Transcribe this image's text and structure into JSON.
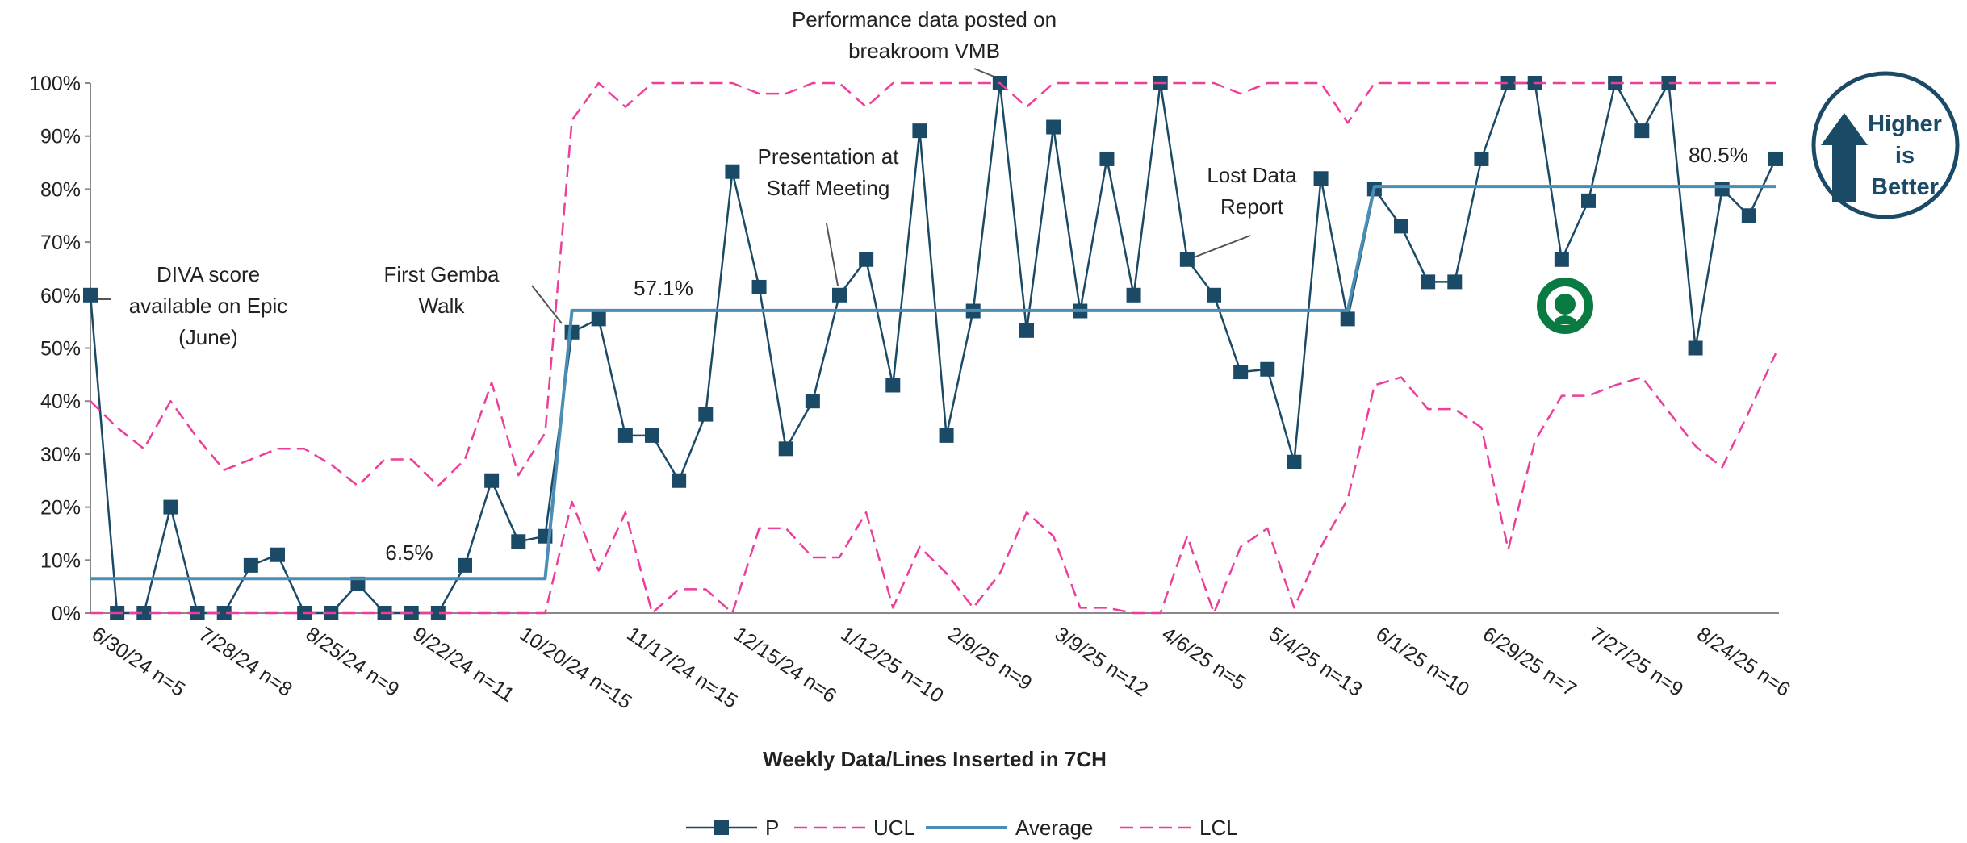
{
  "chart_data": {
    "type": "line",
    "x_label": "Weekly Data/Lines Inserted in 7CH",
    "categories": [
      "6/30/24 n=5",
      null,
      null,
      null,
      "7/28/24 n=8",
      null,
      null,
      null,
      "8/25/24 n=9",
      null,
      null,
      null,
      "9/22/24 n=11",
      null,
      null,
      null,
      "10/20/24 n=15",
      null,
      null,
      null,
      "11/17/24 n=15",
      null,
      null,
      null,
      "12/15/24 n=6",
      null,
      null,
      null,
      "1/12/25 n=10",
      null,
      null,
      null,
      "2/9/25 n=9",
      null,
      null,
      null,
      "3/9/25 n=12",
      null,
      null,
      null,
      "4/6/25 n=5",
      null,
      null,
      null,
      "5/4/25 n=13",
      null,
      null,
      null,
      "6/1/25 n=10",
      null,
      null,
      null,
      "6/29/25 n=7",
      null,
      null,
      null,
      "7/27/25 n=9",
      null,
      null,
      null,
      "8/24/25 n=6",
      null,
      null,
      null
    ],
    "series": [
      {
        "name": "P",
        "color": "#1b4a66",
        "style": "marker-line",
        "values": [
          60,
          0,
          0,
          20,
          0,
          0,
          9,
          11,
          0,
          0,
          5.5,
          0,
          0,
          0,
          9,
          25,
          13.5,
          14.5,
          53,
          55.5,
          33.5,
          33.5,
          25,
          37.5,
          83.3,
          61.5,
          31,
          40,
          60,
          66.7,
          43,
          91,
          33.5,
          57,
          100,
          53.3,
          91.7,
          57,
          85.7,
          60,
          100,
          66.7,
          60,
          45.5,
          46,
          28.5,
          82,
          55.5,
          80,
          73,
          62.5,
          62.5,
          85.7,
          100,
          100,
          66.7,
          77.8,
          100,
          91,
          100,
          50,
          80,
          75,
          85.7
        ]
      },
      {
        "name": "UCL",
        "color": "#ec3f9a",
        "style": "dashed",
        "values": [
          40,
          35,
          31,
          40,
          33,
          27,
          29,
          31,
          31,
          28,
          24,
          29,
          29,
          24,
          29,
          43.5,
          26,
          34,
          93,
          100,
          95.5,
          100,
          100,
          100,
          100,
          98,
          98,
          100,
          100,
          95.5,
          100,
          100,
          100,
          100,
          100,
          95.5,
          100,
          100,
          100,
          100,
          100,
          100,
          100,
          98,
          100,
          100,
          100,
          92.5,
          100,
          100,
          100,
          100,
          100,
          100,
          100,
          100,
          100,
          100,
          100,
          100,
          100,
          100,
          100,
          100
        ]
      },
      {
        "name": "Average",
        "color": "#4a8db5",
        "style": "solid",
        "values": [
          6.5,
          6.5,
          6.5,
          6.5,
          6.5,
          6.5,
          6.5,
          6.5,
          6.5,
          6.5,
          6.5,
          6.5,
          6.5,
          6.5,
          6.5,
          6.5,
          6.5,
          6.5,
          57.1,
          57.1,
          57.1,
          57.1,
          57.1,
          57.1,
          57.1,
          57.1,
          57.1,
          57.1,
          57.1,
          57.1,
          57.1,
          57.1,
          57.1,
          57.1,
          57.1,
          57.1,
          57.1,
          57.1,
          57.1,
          57.1,
          57.1,
          57.1,
          57.1,
          57.1,
          57.1,
          57.1,
          57.1,
          57.1,
          80.5,
          80.5,
          80.5,
          80.5,
          80.5,
          80.5,
          80.5,
          80.5,
          80.5,
          80.5,
          80.5,
          80.5,
          80.5,
          80.5,
          80.5,
          80.5
        ]
      },
      {
        "name": "LCL",
        "color": "#ec3f9a",
        "style": "dashed",
        "values": [
          0,
          0,
          0,
          0,
          0,
          0,
          0,
          0,
          0,
          0,
          0,
          0,
          0,
          0,
          0,
          0,
          0,
          0,
          21,
          8,
          19,
          0,
          4.5,
          4.5,
          0,
          16,
          16,
          10.5,
          10.5,
          19,
          1,
          12.5,
          7.5,
          1,
          7.5,
          19,
          14.5,
          1,
          1,
          0,
          0,
          14.5,
          0,
          12.5,
          16,
          1,
          12.5,
          21.5,
          43,
          44.5,
          38.5,
          38.5,
          35,
          12,
          32.5,
          41,
          41,
          43,
          44.5,
          38,
          31.5,
          27.5,
          38,
          49
        ]
      }
    ],
    "ylim": [
      0,
      100
    ],
    "yticks": [
      {
        "value": 0,
        "label": "0%"
      },
      {
        "value": 10,
        "label": "10%"
      },
      {
        "value": 20,
        "label": "20%"
      },
      {
        "value": 30,
        "label": "30%"
      },
      {
        "value": 40,
        "label": "40%"
      },
      {
        "value": 50,
        "label": "50%"
      },
      {
        "value": 60,
        "label": "60%"
      },
      {
        "value": 70,
        "label": "70%"
      },
      {
        "value": 80,
        "label": "80%"
      },
      {
        "value": 90,
        "label": "90%"
      },
      {
        "value": 100,
        "label": "100%"
      }
    ],
    "grid": false,
    "legend": "bottom",
    "annotations": [
      {
        "lines": [
          "DIVA score",
          "available on Epic",
          "(June)"
        ]
      },
      {
        "lines": [
          "First Gemba",
          "Walk"
        ]
      },
      {
        "lines": [
          "Presentation at",
          "Staff Meeting"
        ]
      },
      {
        "lines": [
          "Performance data posted on",
          "breakroom VMB"
        ]
      },
      {
        "lines": [
          "Lost Data",
          "Report"
        ]
      },
      {
        "lines": [
          "6.5%"
        ]
      },
      {
        "lines": [
          "57.1%"
        ]
      },
      {
        "lines": [
          "80.5%"
        ]
      }
    ],
    "badge": [
      "Higher",
      "is",
      "Better"
    ]
  }
}
